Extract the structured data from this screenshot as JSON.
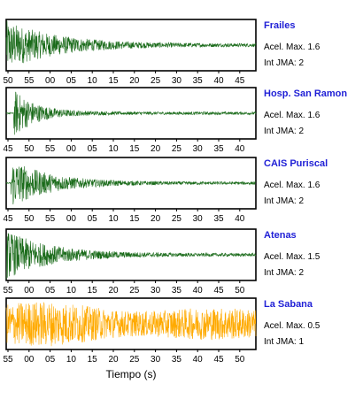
{
  "chart_data": {
    "type": "line",
    "xlabel": "Tiempo (s)",
    "panels": [
      {
        "name": "Frailes",
        "accel_label": "Acel. Max. 1.6",
        "jma_label": "Int JMA: 2",
        "color": "#1a6b1a",
        "ticks": [
          "50",
          "55",
          "00",
          "05",
          "10",
          "15",
          "20",
          "25",
          "30",
          "35",
          "40",
          "45"
        ],
        "peak_amplitude": 1.6,
        "onset_fraction": 0.0,
        "decay": 2.2
      },
      {
        "name": "Hosp. San Ramon",
        "accel_label": "Acel. Max. 1.6",
        "jma_label": "Int JMA: 2",
        "color": "#1a6b1a",
        "ticks": [
          "45",
          "50",
          "55",
          "00",
          "05",
          "10",
          "15",
          "20",
          "25",
          "30",
          "35",
          "40"
        ],
        "peak_amplitude": 1.6,
        "onset_fraction": 0.03,
        "decay": 5.0
      },
      {
        "name": "CAIS Puriscal",
        "accel_label": "Acel. Max. 1.6",
        "jma_label": "Int JMA: 2",
        "color": "#1a6b1a",
        "ticks": [
          "45",
          "50",
          "55",
          "00",
          "05",
          "10",
          "15",
          "20",
          "25",
          "30",
          "35",
          "40"
        ],
        "peak_amplitude": 1.6,
        "onset_fraction": 0.02,
        "decay": 3.0
      },
      {
        "name": "Atenas",
        "accel_label": "Acel. Max. 1.5",
        "jma_label": "Int JMA: 2",
        "color": "#1a6b1a",
        "ticks": [
          "55",
          "00",
          "05",
          "10",
          "15",
          "20",
          "25",
          "30",
          "35",
          "40",
          "45",
          "50"
        ],
        "peak_amplitude": 1.5,
        "onset_fraction": 0.0,
        "decay": 2.6
      },
      {
        "name": "La Sabana",
        "accel_label": "Acel. Max. 0.5",
        "jma_label": "Int JMA: 1",
        "color": "#ffaa00",
        "ticks": [
          "55",
          "00",
          "05",
          "10",
          "15",
          "20",
          "25",
          "30",
          "35",
          "40",
          "45",
          "50"
        ],
        "peak_amplitude": 0.5,
        "onset_fraction": 0.0,
        "decay": 0.6
      }
    ]
  }
}
